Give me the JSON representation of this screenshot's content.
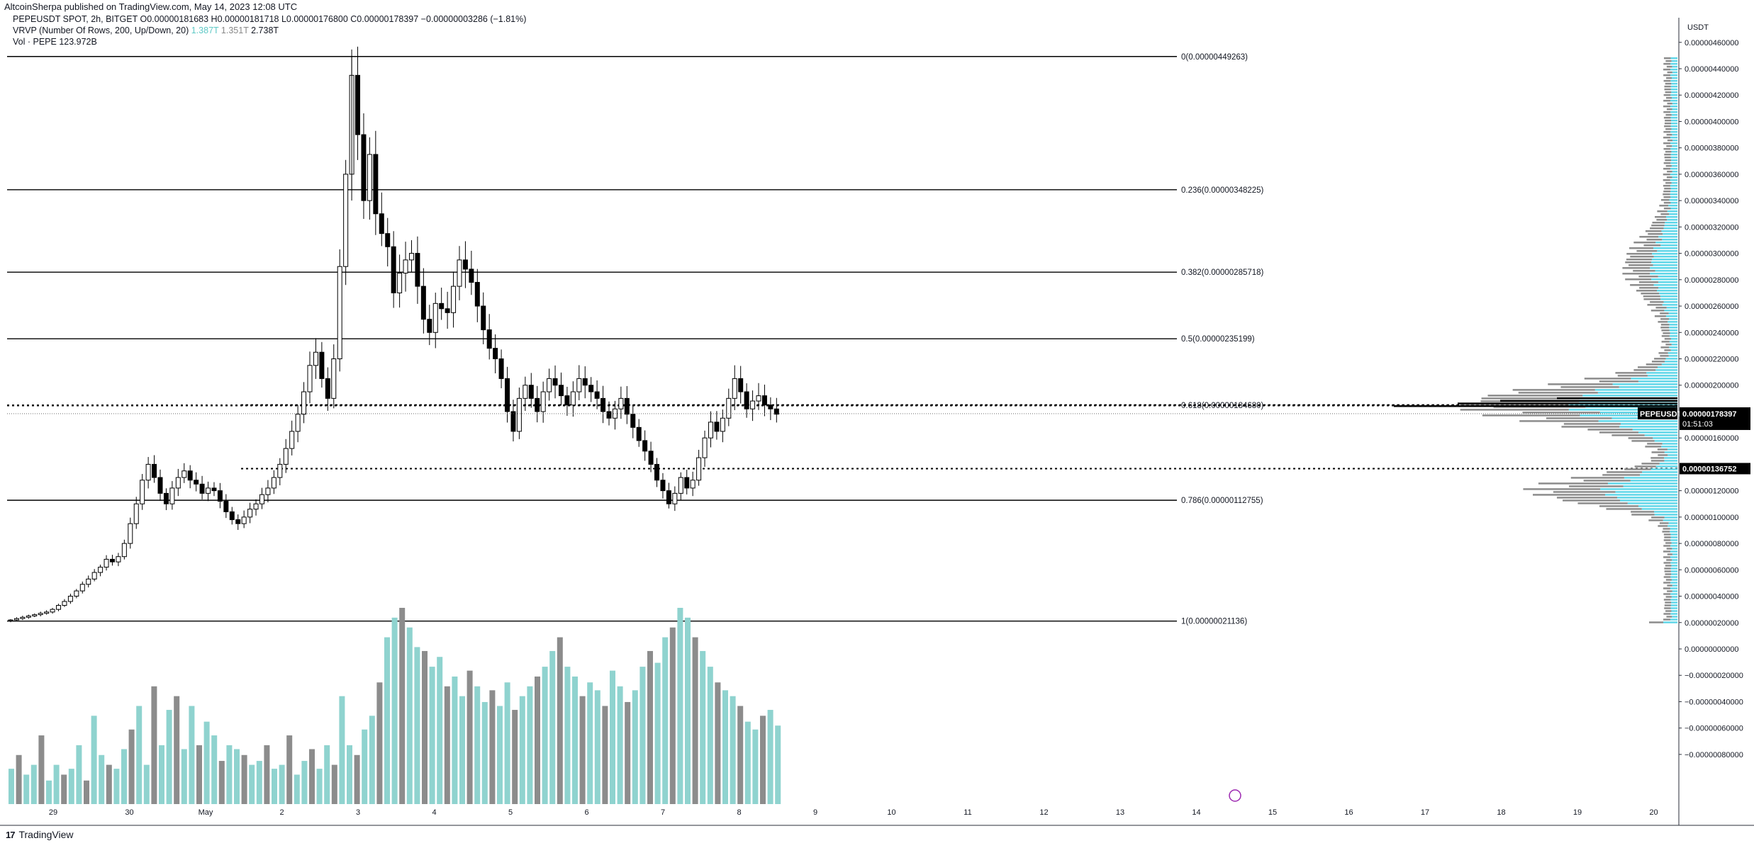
{
  "header": {
    "published": "AltcoinSherpa published on TradingView.com, May 14, 2023 12:08 UTC"
  },
  "legend": {
    "symbol_line": "PEPEUSDT SPOT, 2h, BITGET",
    "ohlc": "O0.00000181683  H0.00000181718  L0.00000176800  C0.00000178397  −0.00000003286 (−1.81%)",
    "vrvp_label": "VRVP (Number Of Rows, 200, Up/Down, 20)",
    "vrvp_up": "1.387T",
    "vrvp_down": "1.351T",
    "vrvp_total": "2.738T",
    "vol_label": "Vol · PEPE",
    "vol_value": "123.972B"
  },
  "footer": {
    "brand": "TradingView",
    "logo_text": "17"
  },
  "colors": {
    "background": "#ffffff",
    "up_candle_fill": "#ffffff",
    "down_candle_fill": "#000000",
    "volume_up": "#8fd3cf",
    "volume_down": "#8c8c8c",
    "vp_up": "#5fd6e8",
    "vp_down": "#8c8c8c",
    "fib_line": "#000000"
  },
  "chart_data": {
    "type": "candlestick",
    "symbol": "PEPEUSDT",
    "interval": "2h",
    "exchange": "BITGET",
    "y_unit": "USDT",
    "ylim": [
      -8.5e-08,
      4.7e-07
    ],
    "y_ticks": [
      "0.00000460000",
      "0.00000440000",
      "0.00000420000",
      "0.00000400000",
      "0.00000380000",
      "0.00000360000",
      "0.00000340000",
      "0.00000320000",
      "0.00000300000",
      "0.00000280000",
      "0.00000260000",
      "0.00000240000",
      "0.00000220000",
      "0.00000200000",
      "0.00000160000",
      "0.00000120000",
      "0.00000100000",
      "0.00000080000",
      "0.00000060000",
      "0.00000040000",
      "0.00000020000",
      "0.00000000000",
      "−0.00000020000",
      "−0.00000040000",
      "−0.00000060000",
      "−0.00000080000"
    ],
    "x_ticks": [
      "29",
      "30",
      "May",
      "2",
      "3",
      "4",
      "5",
      "6",
      "7",
      "8",
      "9",
      "10",
      "11",
      "12",
      "13",
      "14",
      "15",
      "16",
      "17",
      "18",
      "19",
      "20"
    ],
    "fib_levels": [
      {
        "ratio": "0",
        "value": 4.49263e-06,
        "label": "0(0.00000449263)"
      },
      {
        "ratio": "0.236",
        "value": 3.48225e-06,
        "label": "0.236(0.00000348225)"
      },
      {
        "ratio": "0.382",
        "value": 2.85718e-06,
        "label": "0.382(0.00000285718)"
      },
      {
        "ratio": "0.5",
        "value": 2.35199e-06,
        "label": "0.5(0.00000235199)"
      },
      {
        "ratio": "0.618",
        "value": 1.8468e-06,
        "label": "0.618(0.00000184680)"
      },
      {
        "ratio": "0.786",
        "value": 1.12755e-06,
        "label": "0.786(0.00000112755)"
      },
      {
        "ratio": "1",
        "value": 2.1136e-07,
        "label": "1(0.00000021136)"
      }
    ],
    "horizontal_levels": [
      {
        "value": 1.36752e-06,
        "style": "dotted",
        "label": "0.00000136752"
      },
      {
        "value": 1.85e-06,
        "style": "dotted",
        "label": ""
      }
    ],
    "last_price": {
      "symbol": "PEPEUSDT",
      "value": "0.00000178397",
      "countdown": "01:51:03"
    },
    "axis_labels": {
      "usdt": "USDT"
    },
    "candles_close_path": [
      2.2e-07,
      2.3e-07,
      2.4e-07,
      2.5e-07,
      2.6e-07,
      2.7e-07,
      2.8e-07,
      3e-07,
      3.3e-07,
      3.6e-07,
      4e-07,
      4.4e-07,
      4.9e-07,
      5.3e-07,
      5.8e-07,
      6.2e-07,
      6.8e-07,
      6.6e-07,
      7e-07,
      8e-07,
      9.5e-07,
      1.1e-06,
      1.28e-06,
      1.4e-06,
      1.3e-06,
      1.18e-06,
      1.1e-06,
      1.22e-06,
      1.3e-06,
      1.35e-06,
      1.28e-06,
      1.25e-06,
      1.18e-06,
      1.22e-06,
      1.2e-06,
      1.12e-06,
      1.04e-06,
      9.8e-07,
      9.5e-07,
      1e-06,
      1.06e-06,
      1.1e-06,
      1.17e-06,
      1.22e-06,
      1.3e-06,
      1.4e-06,
      1.52e-06,
      1.65e-06,
      1.78e-06,
      1.95e-06,
      2.15e-06,
      2.25e-06,
      2.05e-06,
      1.9e-06,
      2.2e-06,
      2.9e-06,
      3.6e-06,
      4.35e-06,
      3.9e-06,
      3.4e-06,
      3.75e-06,
      3.3e-06,
      3.15e-06,
      3.05e-06,
      2.7e-06,
      2.85e-06,
      2.95e-06,
      3e-06,
      2.75e-06,
      2.5e-06,
      2.4e-06,
      2.62e-06,
      2.58e-06,
      2.55e-06,
      2.75e-06,
      2.95e-06,
      2.88e-06,
      2.78e-06,
      2.6e-06,
      2.42e-06,
      2.28e-06,
      2.2e-06,
      2.05e-06,
      1.8e-06,
      1.65e-06,
      1.9e-06,
      2e-06,
      1.9e-06,
      1.8e-06,
      1.95e-06,
      2.05e-06,
      2e-06,
      1.92e-06,
      1.85e-06,
      1.95e-06,
      2.05e-06,
      2e-06,
      1.95e-06,
      1.9e-06,
      1.8e-06,
      1.75e-06,
      1.82e-06,
      1.9e-06,
      1.78e-06,
      1.68e-06,
      1.58e-06,
      1.5e-06,
      1.4e-06,
      1.28e-06,
      1.2e-06,
      1.1e-06,
      1.18e-06,
      1.3e-06,
      1.22e-06,
      1.28e-06,
      1.45e-06,
      1.6e-06,
      1.72e-06,
      1.65e-06,
      1.75e-06,
      1.9e-06,
      2.05e-06,
      1.95e-06,
      1.82e-06,
      1.88e-06,
      1.92e-06,
      1.85e-06,
      1.82e-06,
      1.78e-06
    ],
    "volume_series_relative": [
      0.18,
      0.25,
      0.15,
      0.2,
      0.35,
      0.12,
      0.2,
      0.15,
      0.18,
      0.3,
      0.12,
      0.45,
      0.25,
      0.2,
      0.18,
      0.28,
      0.38,
      0.5,
      0.2,
      0.6,
      0.3,
      0.48,
      0.55,
      0.28,
      0.5,
      0.3,
      0.42,
      0.35,
      0.22,
      0.3,
      0.28,
      0.25,
      0.2,
      0.22,
      0.3,
      0.18,
      0.2,
      0.35,
      0.15,
      0.22,
      0.28,
      0.18,
      0.3,
      0.2,
      0.55,
      0.3,
      0.25,
      0.38,
      0.45,
      0.62,
      0.85,
      0.95,
      1.0,
      0.9,
      0.8,
      0.78,
      0.7,
      0.75,
      0.6,
      0.65,
      0.55,
      0.68,
      0.6,
      0.52,
      0.58,
      0.5,
      0.62,
      0.48,
      0.55,
      0.6,
      0.65,
      0.7,
      0.78,
      0.85,
      0.7,
      0.65,
      0.55,
      0.62,
      0.58,
      0.5,
      0.68,
      0.6,
      0.52,
      0.58,
      0.7,
      0.78,
      0.72,
      0.85,
      0.9,
      1.0,
      0.95,
      0.85,
      0.78,
      0.7,
      0.62,
      0.58,
      0.55,
      0.5,
      0.42,
      0.38,
      0.45,
      0.48,
      0.4
    ]
  }
}
